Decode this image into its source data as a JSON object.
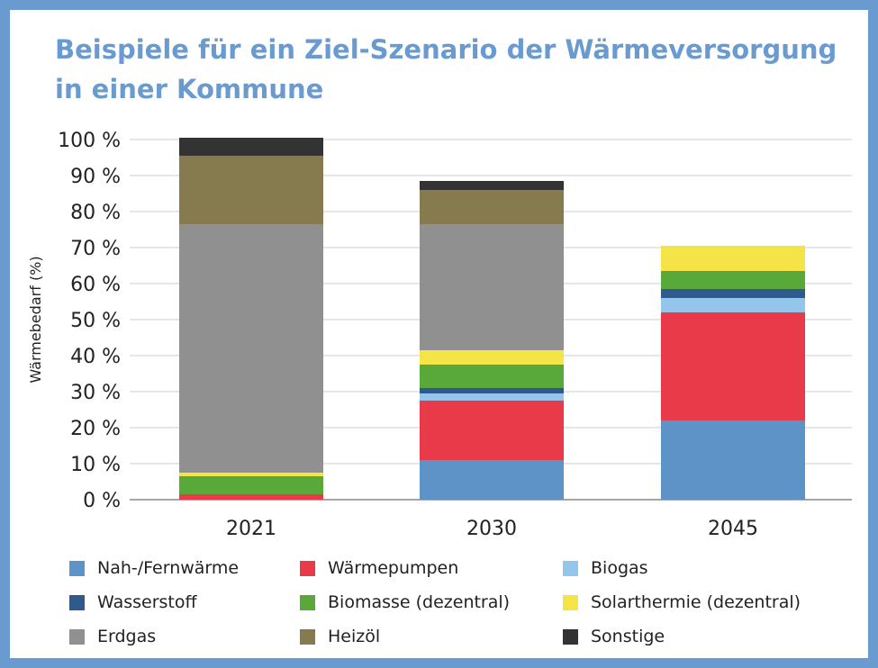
{
  "chart_data": {
    "type": "bar",
    "stacked": true,
    "title": "Beispiele für ein Ziel-Szenario der Wärmeversorgung in einer Kommune",
    "ylabel": "Wärmebedarf (%)",
    "xlabel": "",
    "ylim": [
      0,
      100
    ],
    "yticks": [
      0,
      10,
      20,
      30,
      40,
      50,
      60,
      70,
      80,
      90,
      100
    ],
    "ytick_labels": [
      "0 %",
      "10 %",
      "20 %",
      "30 %",
      "40 %",
      "50 %",
      "60 %",
      "70 %",
      "80 %",
      "90 %",
      "100 %"
    ],
    "grid": true,
    "legend_position": "bottom",
    "categories": [
      "2021",
      "2030",
      "2045"
    ],
    "series": [
      {
        "name": "Nah-/Fernwärme",
        "color": "#5e93c8",
        "values": [
          0,
          11,
          22
        ]
      },
      {
        "name": "Wärmepumpen",
        "color": "#e83a48",
        "values": [
          1.5,
          16.5,
          30
        ]
      },
      {
        "name": "Biogas",
        "color": "#93c6ea",
        "values": [
          0,
          2,
          4
        ]
      },
      {
        "name": "Wasserstoff",
        "color": "#2f5a8e",
        "values": [
          0,
          1.5,
          2.5
        ]
      },
      {
        "name": "Biomasse (dezentral)",
        "color": "#58a93a",
        "values": [
          5,
          6.5,
          5
        ]
      },
      {
        "name": "Solarthermie (dezentral)",
        "color": "#f5e447",
        "values": [
          1,
          4,
          7
        ]
      },
      {
        "name": "Erdgas",
        "color": "#909090",
        "values": [
          69,
          35,
          0
        ]
      },
      {
        "name": "Heizöl",
        "color": "#867b4e",
        "values": [
          19,
          9.5,
          0
        ]
      },
      {
        "name": "Sonstige",
        "color": "#333333",
        "values": [
          5,
          2.5,
          0
        ]
      }
    ]
  }
}
